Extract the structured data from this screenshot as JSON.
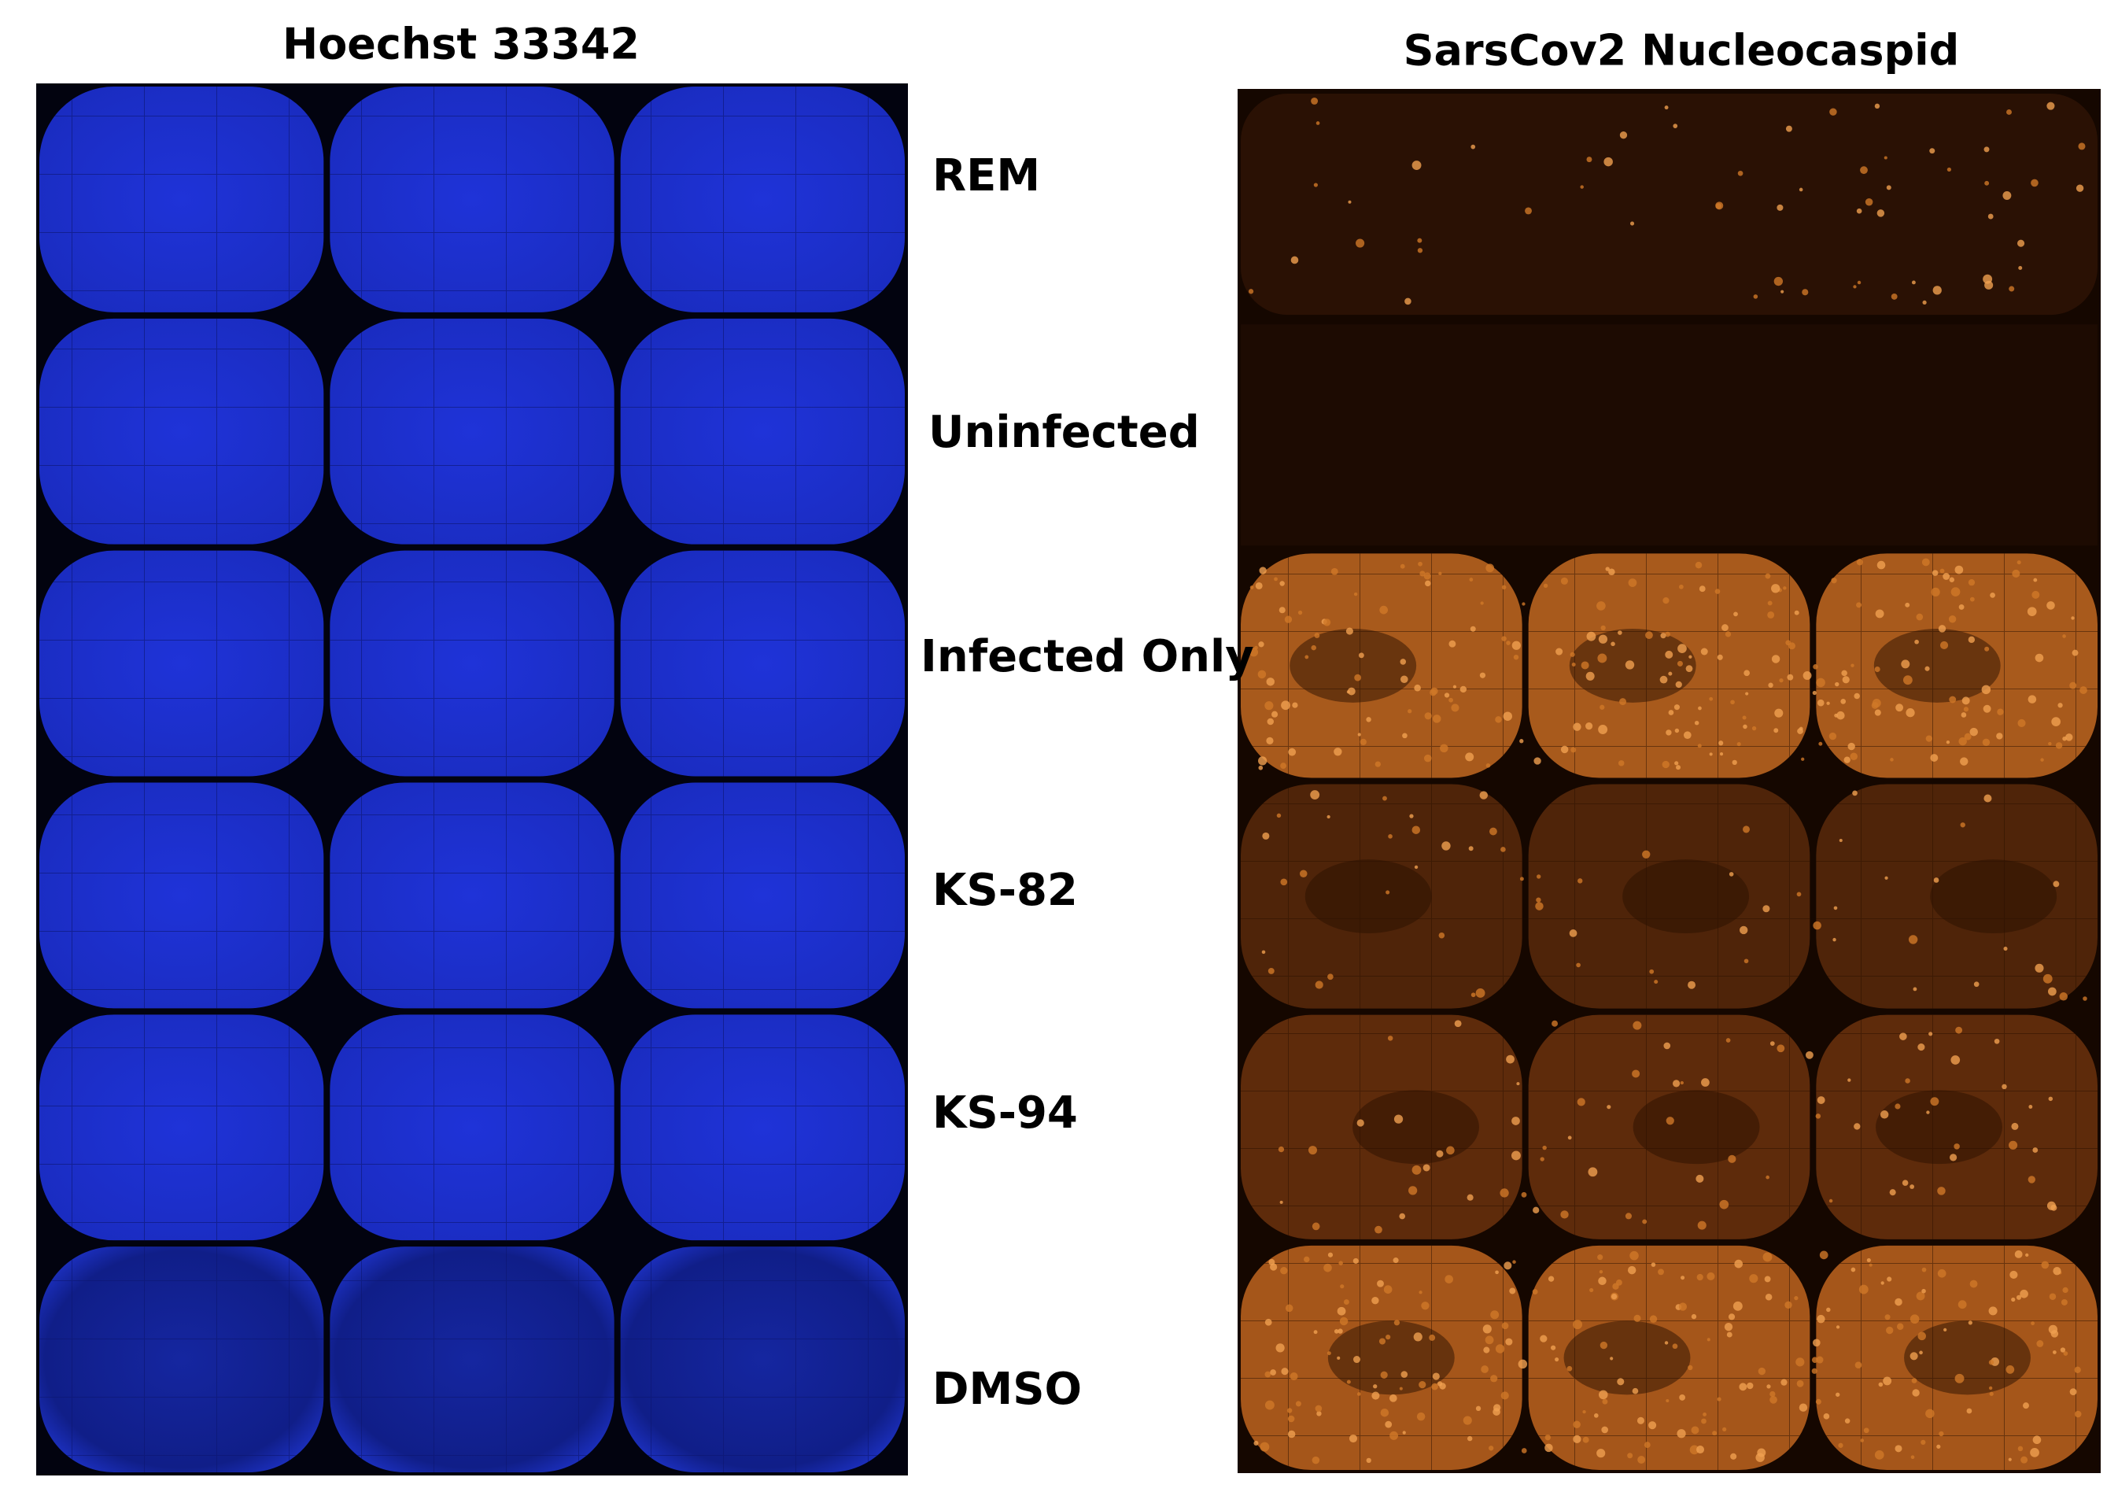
{
  "panels": [
    {
      "title": "Hoechst 33342"
    },
    {
      "title": "SarsCov2 Nucleocaspid"
    }
  ],
  "rows": [
    "REM",
    "Uninfected",
    "Infected Only",
    "KS-82",
    "KS-94",
    "DMSO"
  ]
}
